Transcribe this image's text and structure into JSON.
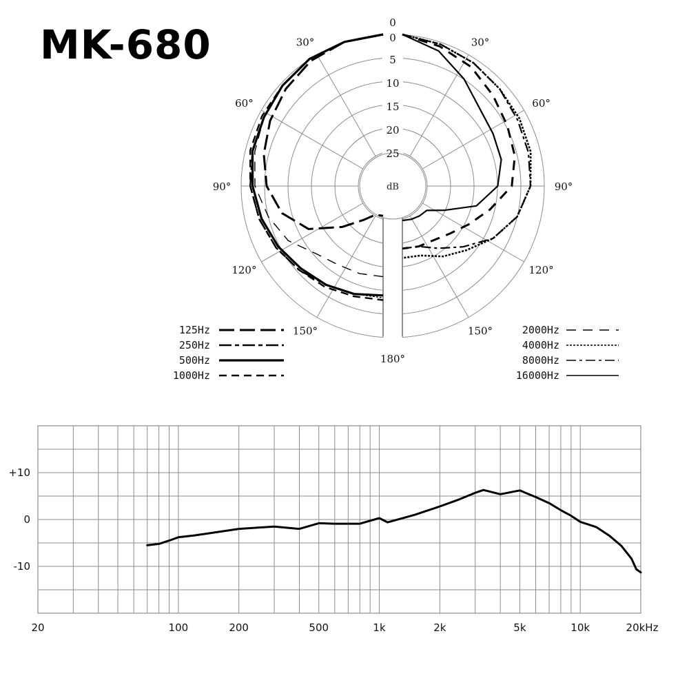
{
  "title": "MK-680",
  "chart_data": [
    {
      "type": "polar",
      "radial_labels": [
        "0",
        "0",
        "5",
        "10",
        "15",
        "20",
        "25"
      ],
      "radial_unit": "dB",
      "angle_labels": {
        "left": [
          "30°",
          "60°",
          "90°",
          "120°",
          "150°"
        ],
        "right": [
          "30°",
          "60°",
          "90°",
          "120°",
          "150°"
        ],
        "bottom": "180°"
      },
      "db_rings": [
        0,
        5,
        10,
        15,
        20,
        25
      ],
      "legend_left": [
        {
          "label": "125Hz",
          "dash": "long-dash"
        },
        {
          "label": "250Hz",
          "dash": "dash-dot-long"
        },
        {
          "label": "500Hz",
          "dash": "solid-thick"
        },
        {
          "label": "1000Hz",
          "dash": "dash"
        }
      ],
      "legend_right": [
        {
          "label": "2000Hz",
          "dash": "sparse-dash"
        },
        {
          "label": "4000Hz",
          "dash": "fine-dash"
        },
        {
          "label": "8000Hz",
          "dash": "dash-dot"
        },
        {
          "label": "16000Hz",
          "dash": "solid"
        }
      ],
      "series": [
        {
          "name": "125Hz",
          "side": "left",
          "angles": [
            0,
            15,
            30,
            45,
            60,
            75,
            90,
            105,
            120,
            135,
            150,
            165,
            180
          ],
          "db": [
            0,
            0.5,
            1.5,
            3,
            4.5,
            6,
            7.5,
            10,
            14,
            20,
            24,
            26,
            26
          ]
        },
        {
          "name": "250Hz",
          "side": "left",
          "angles": [
            0,
            15,
            30,
            45,
            60,
            75,
            90,
            105,
            120,
            135,
            150,
            165,
            180
          ],
          "db": [
            0,
            0.5,
            1,
            2,
            3,
            3.5,
            4,
            5,
            6,
            7,
            8,
            8.5,
            9
          ]
        },
        {
          "name": "500Hz",
          "side": "left",
          "angles": [
            0,
            15,
            30,
            45,
            60,
            75,
            90,
            105,
            120,
            135,
            150,
            165,
            180
          ],
          "db": [
            0,
            0.5,
            1,
            2,
            3,
            3.5,
            4.5,
            5.5,
            6.5,
            7.5,
            8,
            8.5,
            9
          ]
        },
        {
          "name": "1000Hz",
          "side": "left",
          "angles": [
            0,
            15,
            30,
            45,
            60,
            75,
            90,
            105,
            120,
            135,
            150,
            165,
            180
          ],
          "db": [
            0,
            0.5,
            1,
            2,
            2.5,
            3,
            4,
            5,
            6,
            7,
            7.5,
            8,
            8
          ]
        },
        {
          "name": "2000Hz",
          "side": "left",
          "angles": [
            0,
            15,
            30,
            45,
            60,
            75,
            90,
            105,
            120,
            135,
            150,
            165,
            180
          ],
          "db": [
            0,
            0.5,
            1,
            2,
            3,
            4,
            5,
            7,
            9,
            12,
            13,
            13,
            13
          ]
        },
        {
          "name": "4000Hz",
          "side": "left",
          "angles": [
            0,
            15,
            30,
            45,
            60,
            75,
            90,
            105,
            120,
            135,
            150,
            165,
            180
          ],
          "db": [
            0,
            0.5,
            1,
            2,
            3,
            3.5,
            4.5,
            5.5,
            6.5,
            7.5,
            8,
            8.5,
            8.5
          ]
        },
        {
          "name": "8000Hz",
          "side": "right",
          "angles": [
            0,
            15,
            30,
            45,
            60,
            75,
            90,
            105,
            120,
            135,
            150,
            165,
            180
          ],
          "db": [
            0,
            1,
            2,
            3,
            4,
            4.5,
            5,
            7,
            10,
            14,
            17,
            19,
            19
          ]
        },
        {
          "name": "16000Hz",
          "side": "right",
          "angles": [
            0,
            15,
            30,
            45,
            60,
            75,
            90,
            105,
            120,
            135,
            150,
            165,
            180
          ],
          "db": [
            0,
            2.5,
            6,
            9,
            10,
            10.5,
            12,
            16,
            22,
            25,
            25,
            25,
            25
          ]
        },
        {
          "name": "4000Hz-R",
          "side": "right",
          "angles": [
            0,
            15,
            30,
            45,
            60,
            75,
            90,
            105,
            120,
            135,
            150,
            165,
            180
          ],
          "db": [
            0,
            1,
            2,
            3,
            3.5,
            4,
            5,
            7,
            10,
            13,
            15,
            17,
            17
          ]
        },
        {
          "name": "2000Hz-R",
          "side": "right",
          "angles": [
            0,
            15,
            30,
            45,
            60,
            75,
            90,
            105,
            120,
            135,
            150,
            165,
            180
          ],
          "db": [
            0,
            1.5,
            3,
            5,
            6.5,
            7.5,
            9,
            13,
            16,
            18,
            19,
            19,
            19
          ]
        }
      ]
    },
    {
      "type": "line",
      "xscale": "log",
      "xlim": [
        20,
        20000
      ],
      "ylim": [
        -20,
        20
      ],
      "ytick_labels": [
        "+10",
        "0",
        "-10"
      ],
      "yticks": [
        10,
        0,
        -10
      ],
      "xtick_labels": [
        "20",
        "100",
        "200",
        "500",
        "1k",
        "2k",
        "5k",
        "10k",
        "20kHz"
      ],
      "xticks": [
        20,
        100,
        200,
        500,
        1000,
        2000,
        5000,
        10000,
        20000
      ],
      "x": [
        70,
        80,
        90,
        100,
        120,
        150,
        200,
        300,
        400,
        500,
        600,
        800,
        1000,
        1100,
        1500,
        2000,
        2500,
        3000,
        3300,
        4000,
        5000,
        6000,
        7000,
        8000,
        9000,
        10000,
        12000,
        14000,
        16000,
        18000,
        19000,
        20000
      ],
      "y": [
        -5.5,
        -5.2,
        -4.5,
        -3.8,
        -3.4,
        -2.8,
        -2.0,
        -1.5,
        -2.0,
        -0.8,
        -0.9,
        -0.9,
        0.3,
        -0.6,
        1.0,
        2.8,
        4.3,
        5.7,
        6.3,
        5.4,
        6.2,
        4.8,
        3.5,
        2.0,
        0.8,
        -0.5,
        -1.6,
        -3.5,
        -5.6,
        -8.4,
        -10.6,
        -11.3
      ]
    }
  ]
}
